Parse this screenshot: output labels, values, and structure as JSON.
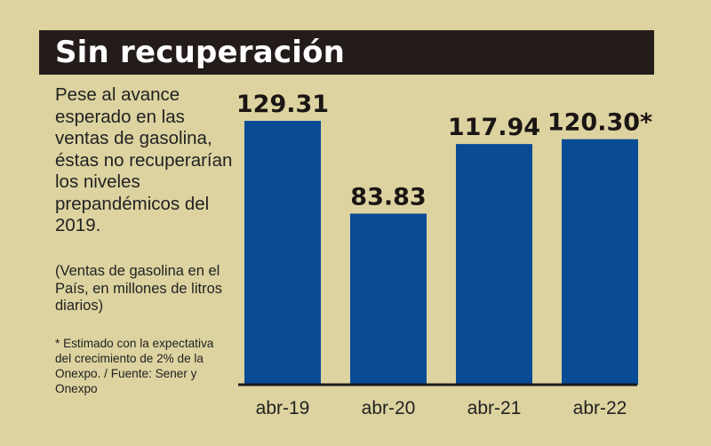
{
  "header": {
    "title": "Sin recuperación"
  },
  "description": "Pese al avance esperado en las ventas de gasolina, éstas no recuperarían los niveles prepandémicos del 2019.",
  "units_note": "(Ventas de gasolina en el País, en millones de litros diarios)",
  "footnote": "* Estimado con la expectativa del crecimiento de 2% de la Onexpo. / Fuente: Sener y Onexpo",
  "colors": {
    "background": "#dcd3a0",
    "title_bar": "#241c1a",
    "bar": "#0a4b96",
    "axis": "#1a1a1a"
  },
  "chart_data": {
    "type": "bar",
    "title": "",
    "xlabel": "",
    "ylabel": "",
    "categories": [
      "abr-19",
      "abr-20",
      "abr-21",
      "abr-22"
    ],
    "values": [
      129.31,
      83.83,
      117.94,
      120.3
    ],
    "value_labels": [
      "129.31",
      "83.83",
      "117.94",
      "120.30*"
    ],
    "ylim": [
      0,
      129.31
    ],
    "grid": false,
    "legend": "none"
  }
}
